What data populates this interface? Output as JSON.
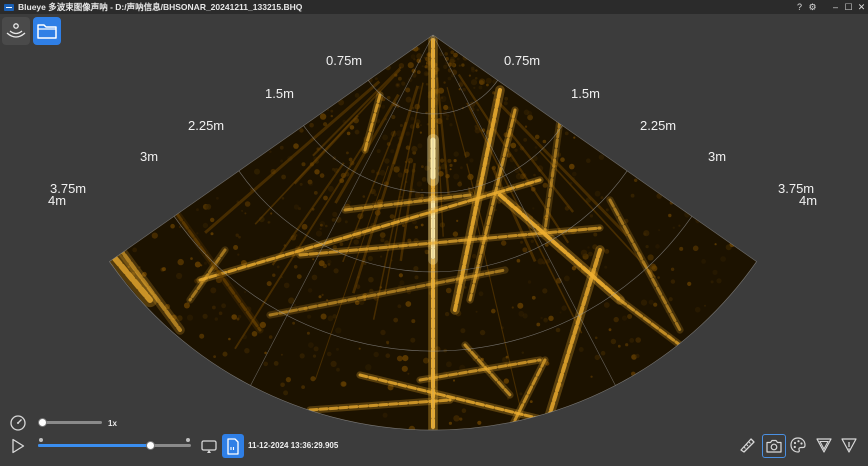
{
  "window": {
    "title": "Blueye 多波束图像声呐 - D:/声呐信息/BHSONAR_20241211_133215.BHQ",
    "help_glyph": "?",
    "settings_glyph": "⚙",
    "minimize_glyph": "–",
    "maximize_glyph": "☐",
    "close_glyph": "✕"
  },
  "sonar": {
    "left_range_labels": [
      "0.75m",
      "1.5m",
      "2.25m",
      "3m",
      "3.75m",
      "4m"
    ],
    "right_range_labels": [
      "0.75m",
      "1.5m",
      "2.25m",
      "3m",
      "3.75m",
      "4m"
    ],
    "palette": {
      "dark": "#140c00",
      "mid": "#6b4300",
      "bright": "#f0b030",
      "peak": "#fff0b0"
    }
  },
  "playback": {
    "speed_label": "1x",
    "speed_fraction": 0.0,
    "progress_fraction": 0.73,
    "timestamp": "11-12-2024 13:36:29.905"
  },
  "colors": {
    "accent": "#2f7fe6",
    "background": "#3c3c3c",
    "titlebar": "#2b2b2b"
  },
  "icons": {
    "top_left": [
      "sonar-icon",
      "folder-icon"
    ],
    "bottom_left": [
      "speed-gauge-icon",
      "play-icon",
      "loop-icon",
      "sd-card-icon"
    ],
    "bottom_right": [
      "ruler-icon",
      "camera-icon",
      "palette-icon",
      "shield-icon",
      "funnel-icon"
    ]
  }
}
